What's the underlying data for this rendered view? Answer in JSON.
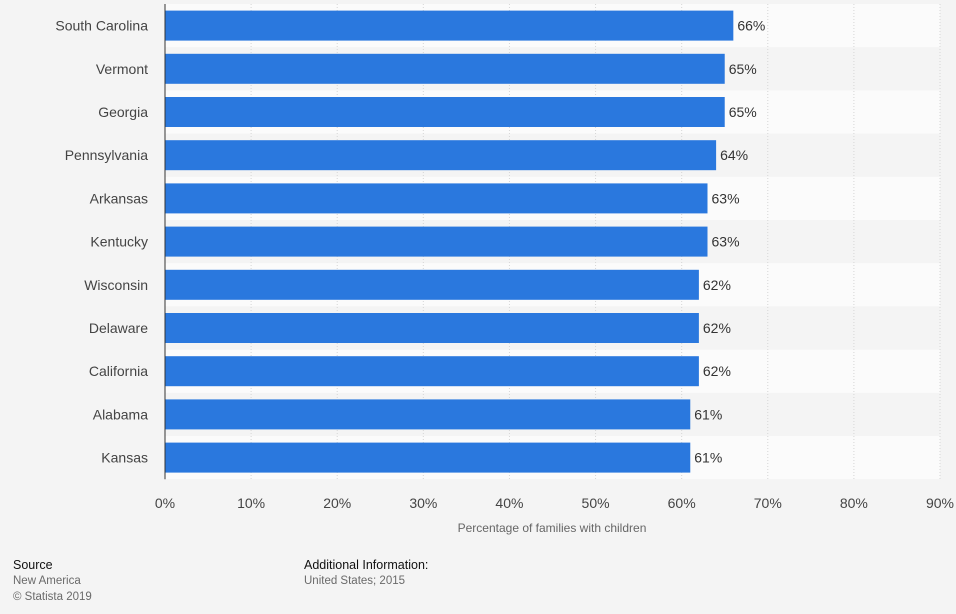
{
  "chart_data": {
    "type": "bar",
    "orientation": "horizontal",
    "categories": [
      "South Carolina",
      "Vermont",
      "Georgia",
      "Pennsylvania",
      "Arkansas",
      "Kentucky",
      "Wisconsin",
      "Delaware",
      "California",
      "Alabama",
      "Kansas"
    ],
    "values": [
      66,
      65,
      65,
      64,
      63,
      63,
      62,
      62,
      62,
      61,
      61
    ],
    "data_labels": [
      "66%",
      "65%",
      "65%",
      "64%",
      "63%",
      "63%",
      "62%",
      "62%",
      "62%",
      "61%",
      "61%"
    ],
    "x_ticks": [
      0,
      10,
      20,
      30,
      40,
      50,
      60,
      70,
      80,
      90
    ],
    "x_tick_labels": [
      "0%",
      "10%",
      "20%",
      "30%",
      "40%",
      "50%",
      "60%",
      "70%",
      "80%",
      "90%"
    ],
    "xlim": [
      0,
      90
    ],
    "xlabel": "Percentage of families with children",
    "ylabel": "",
    "grid": true,
    "bar_color": "#2a78de"
  },
  "footer": {
    "source_heading": "Source",
    "source_name": "New America",
    "copyright": "© Statista 2019",
    "additional_heading": "Additional Information:",
    "additional_text": "United States; 2015"
  }
}
